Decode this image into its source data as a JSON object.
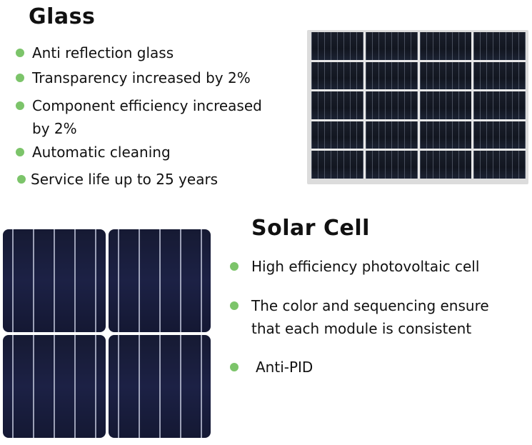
{
  "glass": {
    "title": "Glass",
    "bullets": [
      "Anti reflection glass",
      "Transparency increased by 2%",
      "Component efficiency increased",
      "by 2%",
      "Automatic cleaning",
      "Service life up to 25 years"
    ]
  },
  "solar_cell": {
    "title": "Solar Cell",
    "bullets": [
      "High efficiency photovoltaic cell",
      "The color and sequencing ensure",
      "that each module is consistent",
      "Anti-PID"
    ]
  },
  "colors": {
    "bullet": "#7cc46a"
  }
}
